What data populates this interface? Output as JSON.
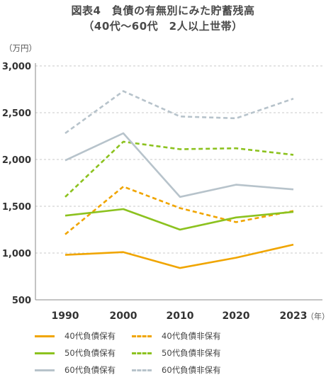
{
  "title_line1": "図表4　負債の有無別にみた貯蓄残高",
  "title_line2": "（40代～60代　2人以上世帯）",
  "unit_label": "（万円）",
  "colors": {
    "orange": "#f0a500",
    "green": "#8cc21f",
    "gray": "#b7c3cb",
    "grid": "#c8c8c8",
    "axis": "#888888"
  },
  "chart_data": {
    "type": "line",
    "x": [
      "1990",
      "2000",
      "2010",
      "2020",
      "2023"
    ],
    "x_suffix": "（年）",
    "ylim": [
      500,
      3000
    ],
    "yticks": [
      500,
      1000,
      1500,
      2000,
      2500,
      3000
    ],
    "ytick_labels": [
      "500",
      "1,000",
      "1,500",
      "2,000",
      "2,500",
      "3,000"
    ],
    "grid": "horizontal dashed",
    "legend_position": "bottom",
    "series": [
      {
        "name": "40代負債保有",
        "color": "orange",
        "dash": "solid",
        "values": [
          980,
          1010,
          840,
          950,
          1090
        ]
      },
      {
        "name": "40代負債非保有",
        "color": "orange",
        "dash": "dashed",
        "values": [
          1200,
          1710,
          1480,
          1330,
          1450
        ]
      },
      {
        "name": "50代負債保有",
        "color": "green",
        "dash": "solid",
        "values": [
          1400,
          1470,
          1250,
          1380,
          1440
        ]
      },
      {
        "name": "50代負債非保有",
        "color": "green",
        "dash": "dashed",
        "values": [
          1600,
          2190,
          2110,
          2120,
          2050
        ]
      },
      {
        "name": "60代負債保有",
        "color": "gray",
        "dash": "solid",
        "values": [
          1990,
          2280,
          1600,
          1730,
          1680
        ]
      },
      {
        "name": "60代負債非保有",
        "color": "gray",
        "dash": "dashed",
        "values": [
          2280,
          2730,
          2460,
          2440,
          2650
        ]
      }
    ]
  }
}
